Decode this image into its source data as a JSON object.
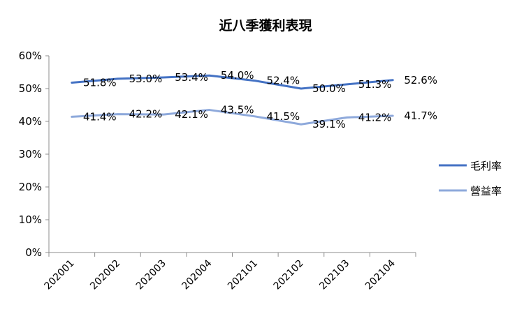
{
  "chart_data": {
    "type": "line",
    "title": "近八季獲利表現",
    "xlabel": "",
    "ylabel": "",
    "categories": [
      "202001",
      "202002",
      "202003",
      "202004",
      "202101",
      "202102",
      "202103",
      "202104"
    ],
    "ylim": [
      0,
      60
    ],
    "yticks": [
      "0%",
      "10%",
      "20%",
      "30%",
      "40%",
      "50%",
      "60%"
    ],
    "grid": false,
    "legend_position": "right",
    "series": [
      {
        "name": "毛利率",
        "color": "#4472C4",
        "values": [
          51.8,
          53.0,
          53.4,
          54.0,
          52.4,
          50.0,
          51.3,
          52.6
        ],
        "labels": [
          "51.8%",
          "53.0%",
          "53.4%",
          "54.0%",
          "52.4%",
          "50.0%",
          "51.3%",
          "52.6%"
        ]
      },
      {
        "name": "營益率",
        "color": "#8EA9DB",
        "values": [
          41.4,
          42.2,
          42.1,
          43.5,
          41.5,
          39.1,
          41.2,
          41.7
        ],
        "labels": [
          "41.4%",
          "42.2%",
          "42.1%",
          "43.5%",
          "41.5%",
          "39.1%",
          "41.2%",
          "41.7%"
        ]
      }
    ]
  }
}
